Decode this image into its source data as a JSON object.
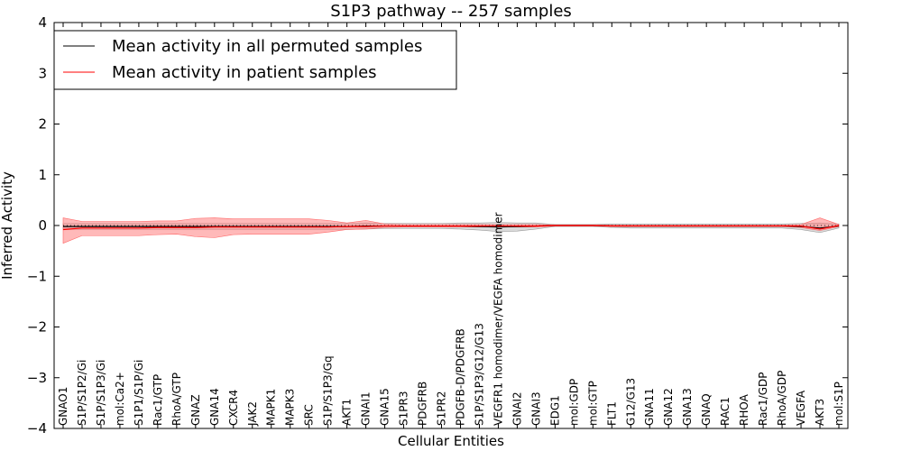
{
  "chart_data": {
    "type": "line",
    "title": "S1P3 pathway -- 257 samples",
    "xlabel": "Cellular Entities",
    "ylabel": "Inferred Activity",
    "ylim": [
      -4,
      4
    ],
    "yticks": [
      -4,
      -3,
      -2,
      -1,
      0,
      1,
      2,
      3,
      4
    ],
    "ytick_labels": [
      "−4",
      "−3",
      "−2",
      "−1",
      "0",
      "1",
      "2",
      "3",
      "4"
    ],
    "grid": false,
    "legend_position": "top-left",
    "colors": {
      "permuted": "#000000",
      "patient": "#ff0000",
      "permuted_band": "#bbbbbb",
      "patient_band": "#ff8080"
    },
    "categories": [
      "GNAO1",
      "S1P/S1P2/Gi",
      "S1P/S1P3/Gi",
      "mol:Ca2+",
      "S1P1/S1P/Gi",
      "Rac1/GTP",
      "RhoA/GTP",
      "GNAZ",
      "GNA14",
      "CXCR4",
      "JAK2",
      "MAPK1",
      "MAPK3",
      "SRC",
      "S1P/S1P3/Gq",
      "AKT1",
      "GNAI1",
      "GNA15",
      "S1PR3",
      "PDGFRB",
      "S1PR2",
      "PDGFB-D/PDGFRB",
      "S1P/S1P3/G12/G13",
      "VEGFR1 homodimer/VEGFA homodimer",
      "GNAI2",
      "GNAI3",
      "EDG1",
      "mol:GDP",
      "mol:GTP",
      "FLT1",
      "G12/G13",
      "GNA11",
      "GNA12",
      "GNA13",
      "GNAQ",
      "RAC1",
      "RHOA",
      "Rac1/GDP",
      "RhoA/GDP",
      "VEGFA",
      "AKT3",
      "mol:S1P"
    ],
    "series": [
      {
        "name": "Mean activity in all permuted samples",
        "values": [
          -0.02,
          -0.02,
          -0.02,
          -0.02,
          -0.02,
          -0.02,
          -0.02,
          -0.02,
          -0.02,
          -0.02,
          -0.02,
          -0.02,
          -0.02,
          -0.02,
          -0.02,
          -0.02,
          -0.01,
          -0.01,
          -0.01,
          -0.01,
          -0.01,
          -0.01,
          -0.02,
          -0.03,
          -0.02,
          -0.01,
          0,
          0,
          0,
          -0.01,
          -0.01,
          -0.01,
          -0.01,
          -0.01,
          -0.01,
          -0.01,
          -0.01,
          -0.01,
          -0.01,
          -0.02,
          -0.05,
          -0.01
        ],
        "band_low": [
          -0.08,
          -0.08,
          -0.08,
          -0.08,
          -0.08,
          -0.08,
          -0.08,
          -0.08,
          -0.08,
          -0.08,
          -0.08,
          -0.08,
          -0.08,
          -0.08,
          -0.08,
          -0.08,
          -0.07,
          -0.06,
          -0.06,
          -0.06,
          -0.06,
          -0.07,
          -0.09,
          -0.12,
          -0.11,
          -0.07,
          -0.02,
          -0.02,
          -0.02,
          -0.04,
          -0.05,
          -0.05,
          -0.05,
          -0.05,
          -0.05,
          -0.05,
          -0.05,
          -0.05,
          -0.05,
          -0.08,
          -0.14,
          -0.05
        ],
        "band_high": [
          0.04,
          0.04,
          0.04,
          0.04,
          0.04,
          0.04,
          0.04,
          0.04,
          0.04,
          0.04,
          0.04,
          0.04,
          0.04,
          0.04,
          0.04,
          0.04,
          0.05,
          0.04,
          0.04,
          0.04,
          0.04,
          0.05,
          0.05,
          0.06,
          0.05,
          0.05,
          0.02,
          0.02,
          0.02,
          0.03,
          0.03,
          0.03,
          0.03,
          0.03,
          0.03,
          0.03,
          0.03,
          0.03,
          0.03,
          0.04,
          0.05,
          0.03
        ]
      },
      {
        "name": "Mean activity in patient samples",
        "values": [
          -0.08,
          -0.05,
          -0.05,
          -0.05,
          -0.05,
          -0.04,
          -0.04,
          -0.04,
          -0.03,
          -0.03,
          -0.03,
          -0.03,
          -0.03,
          -0.03,
          -0.03,
          -0.02,
          -0.02,
          -0.01,
          -0.01,
          -0.01,
          -0.01,
          -0.01,
          -0.01,
          -0.01,
          -0.01,
          -0.01,
          0,
          0,
          0,
          -0.01,
          -0.01,
          -0.01,
          -0.01,
          -0.01,
          -0.01,
          -0.01,
          -0.01,
          -0.01,
          -0.01,
          -0.01,
          -0.07,
          0
        ],
        "band_low": [
          -0.35,
          -0.2,
          -0.2,
          -0.2,
          -0.2,
          -0.18,
          -0.17,
          -0.22,
          -0.24,
          -0.18,
          -0.17,
          -0.17,
          -0.17,
          -0.17,
          -0.13,
          -0.08,
          -0.07,
          -0.04,
          -0.03,
          -0.03,
          -0.03,
          -0.03,
          -0.03,
          -0.03,
          -0.03,
          -0.03,
          -0.01,
          -0.01,
          -0.01,
          -0.02,
          -0.02,
          -0.02,
          -0.02,
          -0.02,
          -0.02,
          -0.02,
          -0.02,
          -0.02,
          -0.02,
          -0.04,
          -0.1,
          -0.02
        ],
        "band_high": [
          0.15,
          0.08,
          0.08,
          0.08,
          0.08,
          0.09,
          0.09,
          0.14,
          0.15,
          0.13,
          0.13,
          0.13,
          0.13,
          0.13,
          0.1,
          0.05,
          0.1,
          0.03,
          0.02,
          0.02,
          0.02,
          0.02,
          0.02,
          0.02,
          0.02,
          0.02,
          0.01,
          0.01,
          0.01,
          0.01,
          0.01,
          0.01,
          0.01,
          0.01,
          0.01,
          0.01,
          0.01,
          0.01,
          0.01,
          0.02,
          0.15,
          0.02
        ]
      }
    ]
  }
}
